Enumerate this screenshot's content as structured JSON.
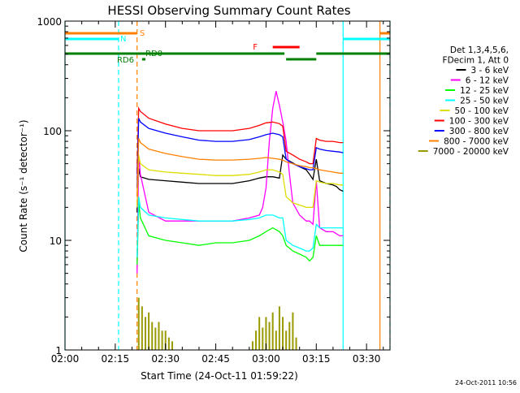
{
  "chart_data": {
    "type": "line",
    "title": "HESSI Observing Summary Count Rates",
    "xlabel": "Start Time (24-Oct-11 01:59:22)",
    "ylabel": "Count Rate (s⁻¹ detector⁻¹)",
    "footer": "24-Oct-2011 10:56",
    "x_unit": "minutes after 02:00 UT",
    "xlim": [
      0,
      97
    ],
    "ylim": [
      1,
      1000
    ],
    "yscale": "log",
    "grid": false,
    "legend_position": "right",
    "legend_header": [
      "Det 1,3,4,5,6,",
      "FDecim 1, Att 0"
    ],
    "x_ticks": [
      {
        "value": 0,
        "label": "02:00"
      },
      {
        "value": 15,
        "label": "02:15"
      },
      {
        "value": 30,
        "label": "02:30"
      },
      {
        "value": 45,
        "label": "02:45"
      },
      {
        "value": 60,
        "label": "03:00"
      },
      {
        "value": 75,
        "label": "03:15"
      },
      {
        "value": 90,
        "label": "03:30"
      }
    ],
    "y_ticks": [
      {
        "value": 1,
        "label": "1"
      },
      {
        "value": 10,
        "label": "10"
      },
      {
        "value": 100,
        "label": "100"
      },
      {
        "value": 1000,
        "label": "1000"
      }
    ],
    "series": [
      {
        "name": "3 - 6 keV",
        "color": "#000000",
        "x": [
          21.5,
          22,
          22.5,
          25,
          30,
          35,
          40,
          45,
          50,
          55,
          58,
          60,
          62,
          64,
          65,
          66,
          70,
          72,
          73,
          74,
          75,
          76,
          78,
          80,
          81,
          82,
          83
        ],
        "y": [
          18,
          45,
          38,
          36,
          35,
          34,
          33,
          33,
          33,
          35,
          37,
          38,
          38,
          37,
          60,
          55,
          47,
          44,
          40,
          36,
          55,
          35,
          33,
          32,
          31,
          29,
          28
        ]
      },
      {
        "name": "6 - 12 keV",
        "color": "#ff00ff",
        "x": [
          21.5,
          22,
          22.5,
          25,
          30,
          35,
          40,
          45,
          50,
          55,
          58,
          59,
          60,
          61,
          62,
          63,
          64,
          65,
          66,
          67,
          68,
          70,
          72,
          73,
          74,
          75,
          76,
          78,
          80,
          82,
          83
        ],
        "y": [
          5,
          60,
          40,
          18,
          15,
          15,
          15,
          15,
          15,
          16,
          17,
          20,
          30,
          80,
          160,
          230,
          170,
          120,
          80,
          40,
          22,
          17,
          15,
          15,
          14,
          35,
          13,
          12,
          12,
          11,
          11
        ]
      },
      {
        "name": "12 - 25 keV",
        "color": "#00ff00",
        "x": [
          21.5,
          22,
          22.5,
          25,
          30,
          35,
          40,
          45,
          50,
          55,
          58,
          60,
          62,
          64,
          65,
          66,
          68,
          70,
          72,
          73,
          74,
          75,
          76,
          78,
          80,
          82,
          83
        ],
        "y": [
          6,
          22,
          16,
          11,
          10,
          9.5,
          9,
          9.5,
          9.5,
          10,
          11,
          12,
          13,
          12,
          11,
          9,
          8,
          7.5,
          7,
          6.5,
          7,
          11,
          9,
          9,
          9,
          9,
          9
        ]
      },
      {
        "name": "25 - 50 keV",
        "color": "#00ffff",
        "x": [
          21.5,
          22,
          22.5,
          25,
          30,
          35,
          40,
          45,
          50,
          55,
          58,
          60,
          62,
          64,
          65,
          66,
          68,
          70,
          72,
          73,
          74,
          75,
          76,
          78,
          80,
          82,
          83
        ],
        "y": [
          7,
          25,
          20,
          17,
          16,
          15.5,
          15,
          15,
          15,
          15.5,
          16,
          17,
          17,
          16,
          16,
          10,
          9,
          8.5,
          8,
          8,
          8.5,
          14,
          13,
          13,
          13,
          13,
          13
        ]
      },
      {
        "name": "50 - 100 keV",
        "color": "#dddd00",
        "x": [
          21.5,
          22,
          22.5,
          25,
          30,
          35,
          40,
          45,
          50,
          55,
          58,
          60,
          62,
          64,
          65,
          66,
          68,
          70,
          72,
          73,
          74,
          75,
          76,
          78,
          80,
          82,
          83
        ],
        "y": [
          20,
          60,
          50,
          44,
          42,
          41,
          40,
          39,
          39,
          40,
          42,
          44,
          44,
          42,
          40,
          25,
          22,
          21,
          20,
          20,
          20,
          35,
          34,
          33,
          33,
          32,
          32
        ]
      },
      {
        "name": "100 - 300 keV",
        "color": "#ff0000",
        "x": [
          21.5,
          22,
          22.5,
          25,
          30,
          35,
          40,
          45,
          50,
          55,
          58,
          60,
          62,
          64,
          65,
          66,
          68,
          70,
          72,
          73,
          74,
          75,
          76,
          78,
          80,
          82,
          83
        ],
        "y": [
          40,
          160,
          150,
          130,
          115,
          105,
          100,
          100,
          100,
          105,
          112,
          118,
          120,
          116,
          110,
          65,
          60,
          55,
          52,
          50,
          50,
          85,
          82,
          80,
          80,
          78,
          78
        ]
      },
      {
        "name": "300 - 800 keV",
        "color": "#0000ff",
        "x": [
          21.5,
          22,
          22.5,
          25,
          30,
          35,
          40,
          45,
          50,
          55,
          58,
          60,
          62,
          64,
          65,
          66,
          68,
          70,
          72,
          73,
          74,
          75,
          76,
          78,
          80,
          82,
          83
        ],
        "y": [
          30,
          130,
          120,
          105,
          95,
          88,
          82,
          80,
          80,
          83,
          88,
          92,
          95,
          92,
          88,
          55,
          50,
          47,
          45,
          44,
          44,
          70,
          68,
          66,
          65,
          64,
          63
        ]
      },
      {
        "name": "800 - 7000 keV",
        "color": "#ff8000",
        "x": [
          21.5,
          22,
          22.5,
          25,
          30,
          35,
          40,
          45,
          50,
          55,
          58,
          60,
          62,
          64,
          65,
          66,
          68,
          70,
          72,
          73,
          74,
          75,
          76,
          78,
          80,
          82,
          83
        ],
        "y": [
          25,
          85,
          78,
          68,
          62,
          58,
          55,
          54,
          54,
          55,
          56,
          57,
          56,
          55,
          54,
          52,
          50,
          48,
          47,
          46,
          46,
          45,
          44,
          43,
          42,
          41,
          41
        ]
      },
      {
        "name": "7000 - 20000 keV",
        "color": "#999900",
        "x": [
          21.5,
          22,
          23,
          24,
          25,
          26,
          27,
          28,
          29,
          30,
          31,
          32,
          56,
          57,
          58,
          59,
          60,
          61,
          62,
          63,
          64,
          65,
          66,
          67,
          68,
          69
        ],
        "y": [
          1,
          3,
          2.5,
          2,
          2.2,
          1.8,
          1.6,
          1.8,
          1.5,
          1.5,
          1.3,
          1.2,
          1.2,
          1.5,
          2,
          1.6,
          2,
          1.8,
          2.2,
          1.5,
          2.5,
          2,
          1.5,
          1.8,
          2.2,
          1.3
        ]
      }
    ],
    "annotations": [
      {
        "label": "S",
        "color": "#ff8000",
        "segments": [
          [
            0,
            21.5
          ],
          [
            94,
            97
          ]
        ]
      },
      {
        "label": "N",
        "color": "#00ffff",
        "segments": [
          [
            0,
            16
          ],
          [
            83,
            97
          ]
        ]
      },
      {
        "label": "F",
        "color": "#ff0000",
        "segments": [
          [
            62,
            70
          ]
        ]
      },
      {
        "label": "RD0",
        "color": "#008000",
        "segments": [
          [
            0,
            65.5
          ],
          [
            75,
            97
          ]
        ]
      },
      {
        "label": "RD6",
        "color": "#008000",
        "segments": [
          [
            23,
            24
          ],
          [
            66,
            75
          ]
        ]
      }
    ],
    "vertical_lines": [
      {
        "x": 0,
        "color": "#00ffff",
        "style": "solid"
      },
      {
        "x": 16,
        "color": "#00ffff",
        "style": "dashed"
      },
      {
        "x": 21.5,
        "color": "#ff8000",
        "style": "dashed"
      },
      {
        "x": 83,
        "color": "#00ffff",
        "style": "solid"
      },
      {
        "x": 94,
        "color": "#ff8000",
        "style": "solid"
      },
      {
        "x": 97,
        "color": "#00ffff",
        "style": "dashed"
      }
    ]
  }
}
